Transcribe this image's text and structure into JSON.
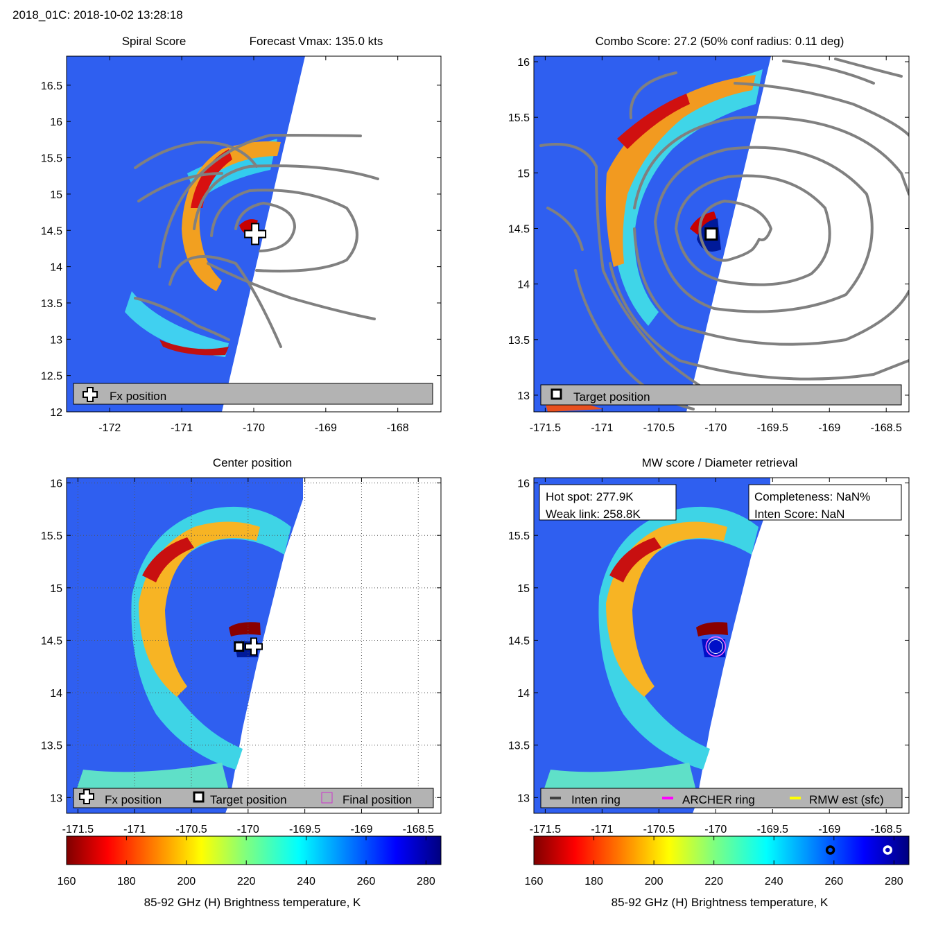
{
  "header": {
    "text": "2018_01C: 2018-10-02 13:28:18"
  },
  "colors": {
    "legend_box": "#b3b3b3",
    "contour": "#808080",
    "archer_ring": "#ff00ff",
    "rmw_est": "#ffff00",
    "inten_ring": "#404040",
    "final_position": "#cc33cc"
  },
  "chart_data": [
    {
      "id": "spiral",
      "type": "heatmap",
      "title_left": "Spiral Score",
      "title_right": "Forecast Vmax: 135.0 kts",
      "xlabel": "",
      "ylabel": "",
      "xlim": [
        -172.6,
        -167.4
      ],
      "ylim": [
        12.0,
        16.9
      ],
      "xticks": [
        -172,
        -171,
        -170,
        -169,
        -168
      ],
      "yticks": [
        12,
        12.5,
        13,
        13.5,
        14,
        14.5,
        15,
        15.5,
        16,
        16.5
      ],
      "xtick_labels": [
        "-172",
        "-171",
        "-170",
        "-169",
        "-168"
      ],
      "ytick_labels": [
        "12",
        "12.5",
        "13",
        "13.5",
        "14",
        "14.5",
        "15",
        "15.5",
        "16",
        "16.5"
      ],
      "markers": [
        {
          "kind": "plus",
          "lon": -169.98,
          "lat": 14.45
        }
      ],
      "legend": [
        "Fx position"
      ]
    },
    {
      "id": "combo",
      "type": "heatmap",
      "title": "Combo Score: 27.2  (50% conf radius: 0.11 deg)",
      "xlim": [
        -171.6,
        -168.3
      ],
      "ylim": [
        12.85,
        16.05
      ],
      "xticks": [
        -171.5,
        -171,
        -170.5,
        -170,
        -169.5,
        -169,
        -168.5
      ],
      "yticks": [
        13,
        13.5,
        14,
        14.5,
        15,
        15.5,
        16
      ],
      "xtick_labels": [
        "-171.5",
        "-171",
        "-170.5",
        "-170",
        "-169.5",
        "-169",
        "-168.5"
      ],
      "ytick_labels": [
        "13",
        "13.5",
        "14",
        "14.5",
        "15",
        "15.5",
        "16"
      ],
      "markers": [
        {
          "kind": "square",
          "lon": -170.04,
          "lat": 14.45
        }
      ],
      "legend": [
        "Target position"
      ]
    },
    {
      "id": "center",
      "type": "heatmap",
      "title": "Center position",
      "xlim": [
        -171.6,
        -168.3
      ],
      "ylim": [
        12.85,
        16.05
      ],
      "xticks": [
        -171.5,
        -171,
        -170.5,
        -170,
        -169.5,
        -169,
        -168.5
      ],
      "yticks": [
        13,
        13.5,
        14,
        14.5,
        15,
        15.5,
        16
      ],
      "xtick_labels": [
        "-171.5",
        "-171",
        "-170.5",
        "-170",
        "-169.5",
        "-169",
        "-168.5"
      ],
      "ytick_labels": [
        "13",
        "13.5",
        "14",
        "14.5",
        "15",
        "15.5",
        "16"
      ],
      "grid": true,
      "markers": [
        {
          "kind": "plus",
          "lon": -169.95,
          "lat": 14.44
        },
        {
          "kind": "square",
          "lon": -170.08,
          "lat": 14.44
        }
      ],
      "legend": [
        "Fx position",
        "Target position",
        "Final position"
      ]
    },
    {
      "id": "mw",
      "type": "heatmap",
      "title": "MW score / Diameter retrieval",
      "xlim": [
        -171.6,
        -168.3
      ],
      "ylim": [
        12.85,
        16.05
      ],
      "xticks": [
        -171.5,
        -171,
        -170.5,
        -170,
        -169.5,
        -169,
        -168.5
      ],
      "yticks": [
        13,
        13.5,
        14,
        14.5,
        15,
        15.5,
        16
      ],
      "xtick_labels": [
        "-171.5",
        "-171",
        "-170.5",
        "-170",
        "-169.5",
        "-169",
        "-168.5"
      ],
      "ytick_labels": [
        "13",
        "13.5",
        "14",
        "14.5",
        "15",
        "15.5",
        "16"
      ],
      "markers": [
        {
          "kind": "ring",
          "lon": -170.0,
          "lat": 14.44
        }
      ],
      "info_left": [
        "Hot spot: 277.9K",
        "Weak link: 258.8K"
      ],
      "info_right": [
        "Completeness: NaN%",
        "Inten Score: NaN"
      ],
      "hot_spot_K": 277.9,
      "weak_link_K": 258.8,
      "legend": [
        "Inten ring",
        "ARCHER ring",
        "RMW est (sfc)"
      ]
    }
  ],
  "colorbar": {
    "min": 160,
    "max": 285,
    "ticks": [
      160,
      180,
      200,
      220,
      240,
      260,
      280
    ],
    "tick_labels": [
      "160",
      "180",
      "200",
      "220",
      "240",
      "260",
      "280"
    ],
    "label": "85-92 GHz (H) Brightness temperature, K",
    "markers_K": [
      258.8,
      277.9
    ]
  }
}
